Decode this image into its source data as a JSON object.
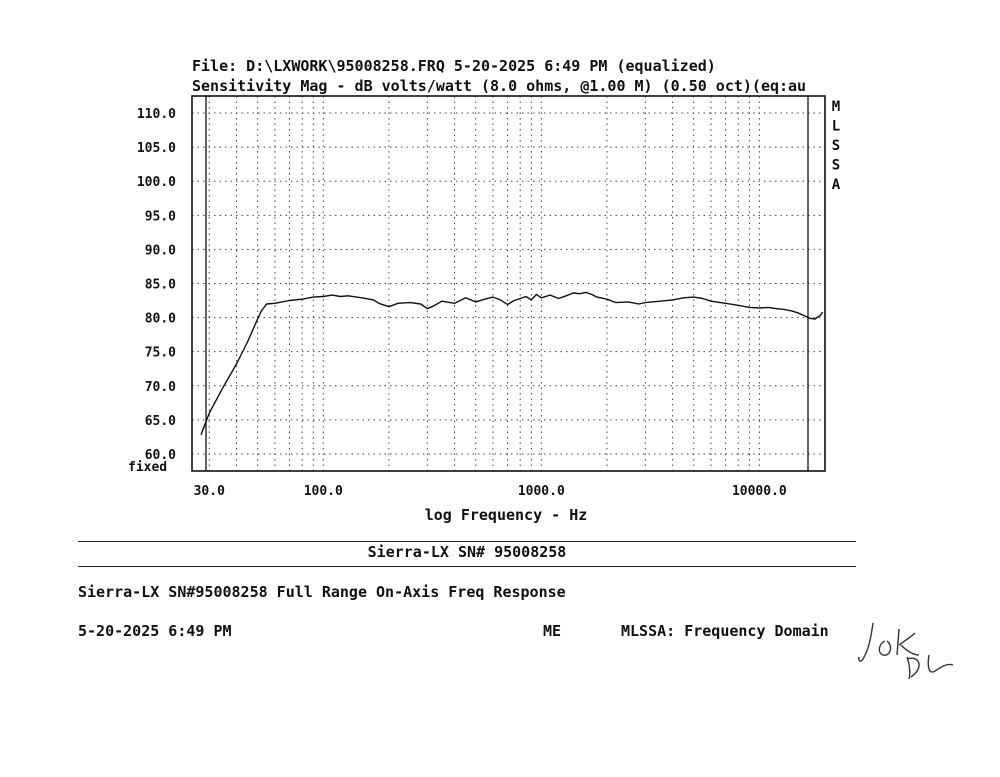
{
  "header": {
    "line1": "File: D:\\LXWORK\\95008258.FRQ 5-20-2025 6:49 PM (equalized)",
    "line2": "Sensitivity Mag - dB volts/watt (8.0 ohms, @1.00 M) (0.50 oct)(eq:au"
  },
  "chart_data": {
    "type": "line",
    "xscale": "log",
    "xlim": [
      25,
      20000
    ],
    "ylim": [
      57.5,
      112.5
    ],
    "xticks": [
      {
        "value": 30,
        "label": "30.0"
      },
      {
        "value": 100,
        "label": "100.0"
      },
      {
        "value": 1000,
        "label": "1000.0"
      },
      {
        "value": 10000,
        "label": "10000.0"
      }
    ],
    "yticks": [
      {
        "value": 110,
        "label": "110.0"
      },
      {
        "value": 105,
        "label": "105.0"
      },
      {
        "value": 100,
        "label": "100.0"
      },
      {
        "value": 95,
        "label": "95.0"
      },
      {
        "value": 90,
        "label": "90.0"
      },
      {
        "value": 85,
        "label": "85.0"
      },
      {
        "value": 80,
        "label": "80.0"
      },
      {
        "value": 75,
        "label": "75.0"
      },
      {
        "value": 70,
        "label": "70.0"
      },
      {
        "value": 65,
        "label": "65.0"
      },
      {
        "value": 60,
        "label": "60.0"
      }
    ],
    "xlabel": "log Frequency - Hz",
    "y_fixed_label": "fixed",
    "side_label": [
      "M",
      "L",
      "S",
      "S",
      "A"
    ],
    "grid": true,
    "series": [
      {
        "x": [
          27.5,
          30,
          35,
          40,
          45,
          50,
          52,
          55,
          60,
          70,
          80,
          90,
          100,
          110,
          120,
          130,
          150,
          170,
          180,
          200,
          220,
          250,
          280,
          300,
          320,
          350,
          400,
          450,
          500,
          550,
          600,
          650,
          700,
          750,
          800,
          850,
          900,
          950,
          1000,
          1100,
          1200,
          1300,
          1400,
          1500,
          1600,
          1700,
          1800,
          2000,
          2200,
          2500,
          2800,
          3000,
          3500,
          4000,
          4500,
          5000,
          5500,
          6000,
          7000,
          8000,
          9000,
          10000,
          11000,
          12000,
          13000,
          14000,
          15000,
          16000,
          17000,
          18000,
          19000,
          19500
        ],
        "values": [
          62.8,
          66.0,
          70.0,
          73.2,
          76.5,
          79.8,
          81.0,
          82.0,
          82.1,
          82.5,
          82.7,
          83.0,
          83.1,
          83.3,
          83.1,
          83.2,
          82.9,
          82.6,
          82.1,
          81.6,
          82.1,
          82.2,
          82.0,
          81.3,
          81.7,
          82.4,
          82.1,
          82.9,
          82.3,
          82.7,
          83.0,
          82.6,
          81.9,
          82.5,
          82.8,
          83.1,
          82.6,
          83.4,
          82.9,
          83.3,
          82.8,
          83.2,
          83.6,
          83.5,
          83.7,
          83.4,
          83.0,
          82.7,
          82.2,
          82.3,
          82.0,
          82.2,
          82.4,
          82.6,
          82.9,
          83.0,
          82.8,
          82.4,
          82.1,
          81.8,
          81.5,
          81.4,
          81.5,
          81.3,
          81.2,
          81.0,
          80.7,
          80.3,
          79.9,
          79.8,
          80.3,
          80.8
        ]
      }
    ]
  },
  "footer": {
    "title": "Sierra-LX SN# 95008258",
    "description": "Sierra-LX SN#95008258 Full Range On-Axis Freq Response",
    "date": "5-20-2025 6:49 PM",
    "operator": "ME",
    "mode": "MLSSA: Frequency Domain",
    "signature_text": "JOK DL"
  }
}
